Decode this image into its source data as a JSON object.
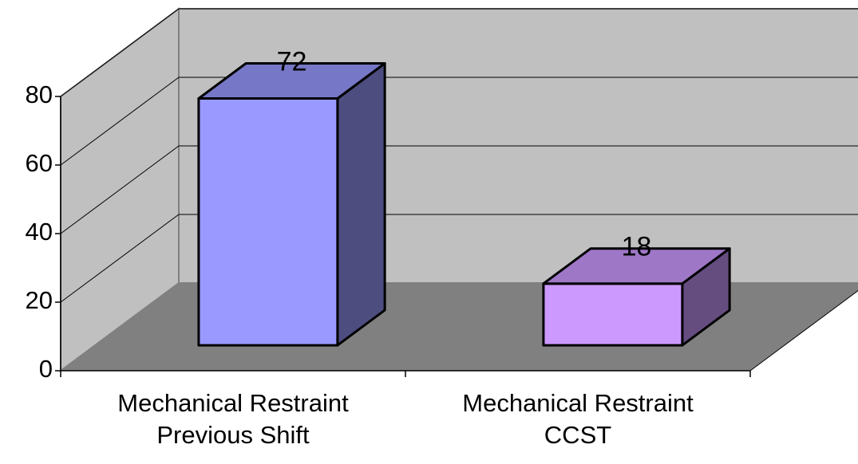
{
  "chart_data": {
    "type": "bar3d",
    "categories": [
      "Mechanical Restraint Previous Shift",
      "Mechanical Restraint CCST"
    ],
    "values": [
      72,
      18
    ],
    "colors": [
      "#9999ff",
      "#cc99ff"
    ],
    "ylim": [
      0,
      80
    ],
    "yticks": [
      0,
      20,
      40,
      60,
      80
    ],
    "grid": true
  }
}
